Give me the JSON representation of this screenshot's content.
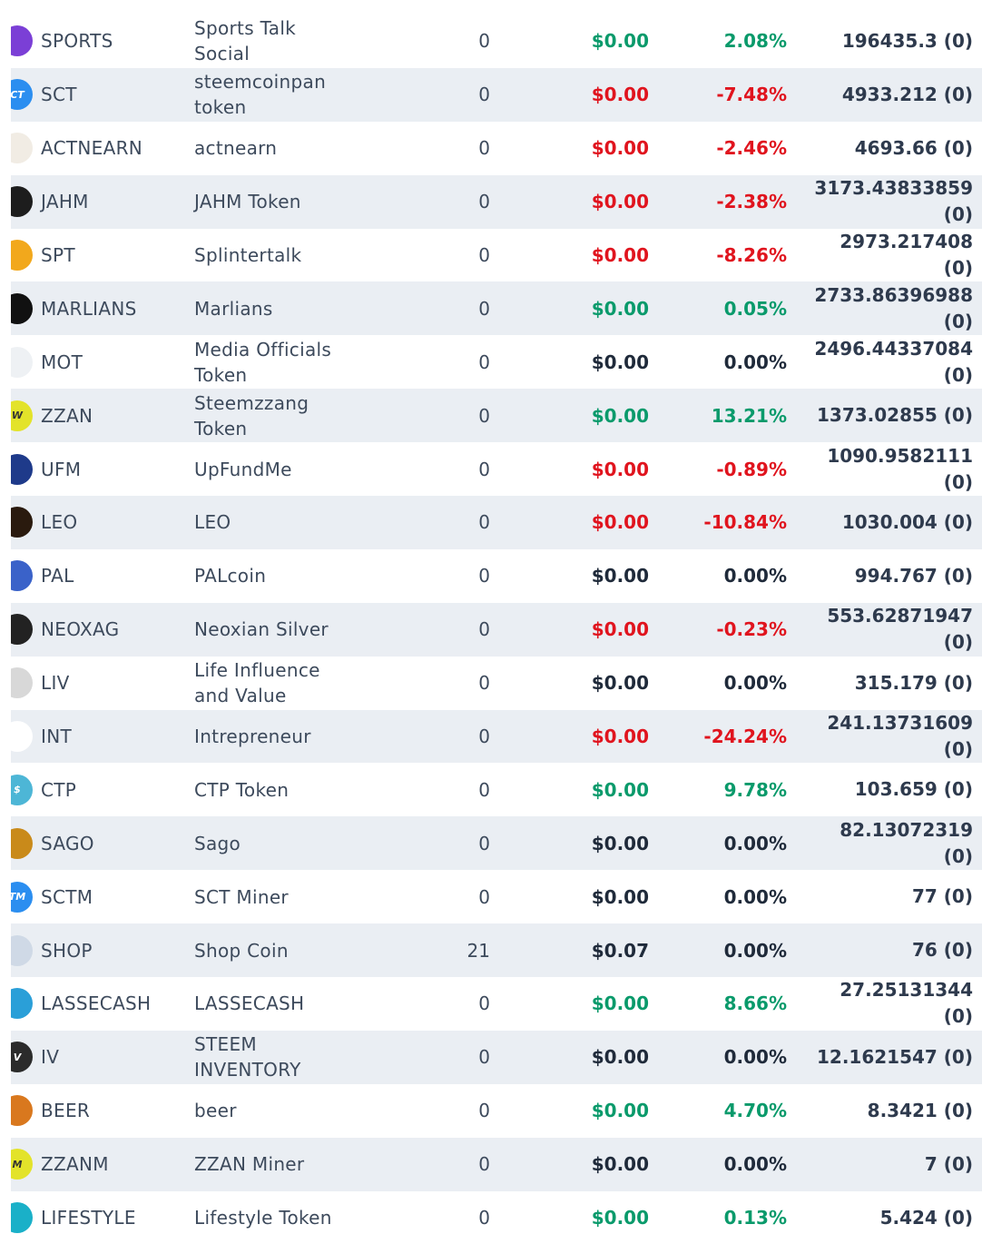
{
  "rows": [
    {
      "symbol": "SPORTS",
      "name": "Sports Talk Social",
      "qty": "0",
      "price": "$0.00",
      "change": "2.08%",
      "balance": "196435.3 (0)",
      "trend": "pos",
      "icon": "sports-icon",
      "icon_color": "#7b3fd6",
      "icon_text": ""
    },
    {
      "symbol": "SCT",
      "name": "steemcoinpan token",
      "qty": "0",
      "price": "$0.00",
      "change": "-7.48%",
      "balance": "4933.212 (0)",
      "trend": "neg",
      "icon": "sct-icon",
      "icon_color": "#2b8ef0",
      "icon_text": "CT"
    },
    {
      "symbol": "ACTNEARN",
      "name": "actnearn",
      "qty": "0",
      "price": "$0.00",
      "change": "-2.46%",
      "balance": "4693.66 (0)",
      "trend": "neg",
      "icon": "actnearn-icon",
      "icon_color": "#f1ece4",
      "icon_text": ""
    },
    {
      "symbol": "JAHM",
      "name": "JAHM Token",
      "qty": "0",
      "price": "$0.00",
      "change": "-2.38%",
      "balance": "3173.43833859 (0)",
      "trend": "neg",
      "icon": "jahm-icon",
      "icon_color": "#1d1d1d",
      "icon_text": ""
    },
    {
      "symbol": "SPT",
      "name": "Splintertalk",
      "qty": "0",
      "price": "$0.00",
      "change": "-8.26%",
      "balance": "2973.217408 (0)",
      "trend": "neg",
      "icon": "spt-icon",
      "icon_color": "#f2a81c",
      "icon_text": ""
    },
    {
      "symbol": "MARLIANS",
      "name": "Marlians",
      "qty": "0",
      "price": "$0.00",
      "change": "0.05%",
      "balance": "2733.86396988 (0)",
      "trend": "pos",
      "icon": "marlians-icon",
      "icon_color": "#111111",
      "icon_text": ""
    },
    {
      "symbol": "MOT",
      "name": "Media Officials Token",
      "qty": "0",
      "price": "$0.00",
      "change": "0.00%",
      "balance": "2496.44337084 (0)",
      "trend": "neu",
      "icon": "mot-icon",
      "icon_color": "#eef1f4",
      "icon_text": ""
    },
    {
      "symbol": "ZZAN",
      "name": "Steemzzang Token",
      "qty": "0",
      "price": "$0.00",
      "change": "13.21%",
      "balance": "1373.02855 (0)",
      "trend": "pos",
      "icon": "zzan-icon",
      "icon_color": "#e3e32a",
      "icon_text": "W"
    },
    {
      "symbol": "UFM",
      "name": "UpFundMe",
      "qty": "0",
      "price": "$0.00",
      "change": "-0.89%",
      "balance": "1090.9582111 (0)",
      "trend": "neg",
      "icon": "ufm-icon",
      "icon_color": "#1e3a8a",
      "icon_text": ""
    },
    {
      "symbol": "LEO",
      "name": "LEO",
      "qty": "0",
      "price": "$0.00",
      "change": "-10.84%",
      "balance": "1030.004 (0)",
      "trend": "neg",
      "icon": "leo-icon",
      "icon_color": "#2a1a0e",
      "icon_text": ""
    },
    {
      "symbol": "PAL",
      "name": "PALcoin",
      "qty": "0",
      "price": "$0.00",
      "change": "0.00%",
      "balance": "994.767 (0)",
      "trend": "neu",
      "icon": "pal-icon",
      "icon_color": "#3a62c9",
      "icon_text": ""
    },
    {
      "symbol": "NEOXAG",
      "name": "Neoxian Silver",
      "qty": "0",
      "price": "$0.00",
      "change": "-0.23%",
      "balance": "553.62871947 (0)",
      "trend": "neg",
      "icon": "neoxag-icon",
      "icon_color": "#222222",
      "icon_text": ""
    },
    {
      "symbol": "LIV",
      "name": "Life Influence and Value",
      "qty": "0",
      "price": "$0.00",
      "change": "0.00%",
      "balance": "315.179 (0)",
      "trend": "neu",
      "icon": "liv-icon",
      "icon_color": "#d8d8d8",
      "icon_text": ""
    },
    {
      "symbol": "INT",
      "name": "Intrepreneur",
      "qty": "0",
      "price": "$0.00",
      "change": "-24.24%",
      "balance": "241.13731609 (0)",
      "trend": "neg",
      "icon": "int-icon",
      "icon_color": "#ffffff",
      "icon_text": ""
    },
    {
      "symbol": "CTP",
      "name": "CTP Token",
      "qty": "0",
      "price": "$0.00",
      "change": "9.78%",
      "balance": "103.659 (0)",
      "trend": "pos",
      "icon": "ctp-icon",
      "icon_color": "#4db6d6",
      "icon_text": "$"
    },
    {
      "symbol": "SAGO",
      "name": "Sago",
      "qty": "0",
      "price": "$0.00",
      "change": "0.00%",
      "balance": "82.13072319 (0)",
      "trend": "neu",
      "icon": "sago-icon",
      "icon_color": "#c98a1a",
      "icon_text": ""
    },
    {
      "symbol": "SCTM",
      "name": "SCT Miner",
      "qty": "0",
      "price": "$0.00",
      "change": "0.00%",
      "balance": "77 (0)",
      "trend": "neu",
      "icon": "sctm-icon",
      "icon_color": "#2b8ef0",
      "icon_text": "TM"
    },
    {
      "symbol": "SHOP",
      "name": "Shop Coin",
      "qty": "21",
      "price": "$0.07",
      "change": "0.00%",
      "balance": "76 (0)",
      "trend": "neu",
      "icon": "shop-icon",
      "icon_color": "#cfd9e6",
      "icon_text": ""
    },
    {
      "symbol": "LASSECASH",
      "name": "LASSECASH",
      "qty": "0",
      "price": "$0.00",
      "change": "8.66%",
      "balance": "27.25131344 (0)",
      "trend": "pos",
      "icon": "lassecash-icon",
      "icon_color": "#2a9fd8",
      "icon_text": ""
    },
    {
      "symbol": "IV",
      "name": "STEEM INVENTORY",
      "qty": "0",
      "price": "$0.00",
      "change": "0.00%",
      "balance": "12.1621547 (0)",
      "trend": "neu",
      "icon": "iv-icon",
      "icon_color": "#2b2b2b",
      "icon_text": "V"
    },
    {
      "symbol": "BEER",
      "name": "beer",
      "qty": "0",
      "price": "$0.00",
      "change": "4.70%",
      "balance": "8.3421 (0)",
      "trend": "pos",
      "icon": "beer-icon",
      "icon_color": "#d9781e",
      "icon_text": ""
    },
    {
      "symbol": "ZZANM",
      "name": "ZZAN Miner",
      "qty": "0",
      "price": "$0.00",
      "change": "0.00%",
      "balance": "7 (0)",
      "trend": "neu",
      "icon": "zzanm-icon",
      "icon_color": "#e3e32a",
      "icon_text": "M"
    },
    {
      "symbol": "LIFESTYLE",
      "name": "Lifestyle Token",
      "qty": "0",
      "price": "$0.00",
      "change": "0.13%",
      "balance": "5.424 (0)",
      "trend": "pos",
      "icon": "lifestyle-icon",
      "icon_color": "#1ab0c8",
      "icon_text": ""
    }
  ]
}
